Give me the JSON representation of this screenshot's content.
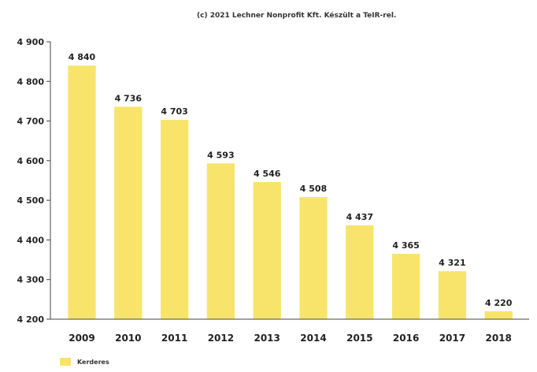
{
  "caption": "(c) 2021 Lechner Nonprofit Kft. Készült a TeIR-rel.",
  "colors": {
    "bar": "#f8e46a",
    "axis": "#444444",
    "text": "#222222"
  },
  "chart_data": {
    "type": "bar",
    "categories": [
      "2009",
      "2010",
      "2011",
      "2012",
      "2013",
      "2014",
      "2015",
      "2016",
      "2017",
      "2018"
    ],
    "series": [
      {
        "name": "Kerderes",
        "values": [
          4840,
          4736,
          4703,
          4593,
          4546,
          4508,
          4437,
          4365,
          4321,
          4220
        ]
      }
    ],
    "value_labels": [
      "4 840",
      "4 736",
      "4 703",
      "4 593",
      "4 546",
      "4 508",
      "4 437",
      "4 365",
      "4 321",
      "4 220"
    ],
    "yticks": [
      4200,
      4300,
      4400,
      4500,
      4600,
      4700,
      4800,
      4900
    ],
    "ytick_labels": [
      "4 200",
      "4 300",
      "4 400",
      "4 500",
      "4 600",
      "4 700",
      "4 800",
      "4 900"
    ],
    "ylim": [
      4200,
      4900
    ],
    "grid": false,
    "legend_position": "bottom-left"
  }
}
